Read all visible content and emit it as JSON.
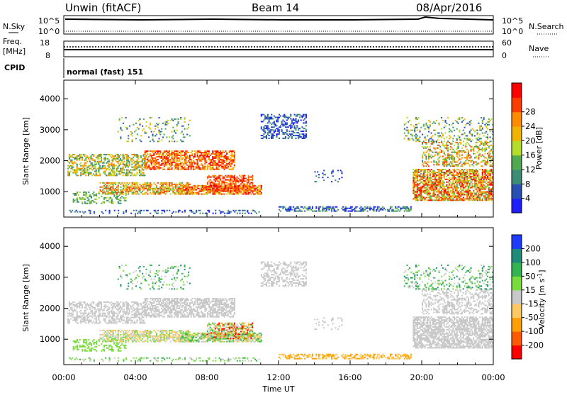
{
  "header": {
    "station": "Unwin (fitACF)",
    "beam": "Beam 14",
    "date": "08/Apr/2016"
  },
  "side_labels": {
    "nsky": "N.Sky",
    "nsearch": "N.Search",
    "freq_line1": "Freq.",
    "freq_line2": "[MHz]",
    "nave": "Nave",
    "cpid": "CPID"
  },
  "noise_panel": {
    "left_ticks": [
      "10^5",
      "10^0"
    ],
    "right_ticks": [
      "10^5",
      "10^0"
    ]
  },
  "freq_panel": {
    "left_ticks": [
      "18",
      "8"
    ],
    "right_ticks": [
      "60",
      "0"
    ]
  },
  "cpid_panel": {
    "text": "normal (fast) 151"
  },
  "colors": {
    "power_scale": [
      "#1e1eff",
      "#2850b4",
      "#3c8c78",
      "#50aa50",
      "#b4dc28",
      "#f0b400",
      "#ff8c00",
      "#ff3c00",
      "#ff0000"
    ],
    "velocity_scale": [
      "#ff0000",
      "#ff5a00",
      "#ffa000",
      "#ffc860",
      "#c8c8c8",
      "#78dc3c",
      "#32b450",
      "#1e8c78",
      "#1e3cff"
    ]
  },
  "chart_data": [
    {
      "type": "heatmap",
      "ylabel": "Slant Range [km]",
      "y_ticks": [
        "1000",
        "2000",
        "3000",
        "4000"
      ],
      "ylim": [
        180,
        4600
      ],
      "colorbar_label": "Power [dB]",
      "colorbar_ticks": [
        "4",
        "8",
        "12",
        "16",
        "20",
        "24",
        "28"
      ],
      "colorbar_range": [
        0,
        32
      ]
    },
    {
      "type": "heatmap",
      "ylabel": "Slant Range [km]",
      "y_ticks": [
        "1000",
        "2000",
        "3000",
        "4000"
      ],
      "ylim": [
        180,
        4600
      ],
      "xlabel": "Time UT",
      "x_ticks": [
        "00:00",
        "04:00",
        "08:00",
        "12:00",
        "16:00",
        "20:00",
        "00:00"
      ],
      "xlim_hours": [
        0,
        24
      ],
      "colorbar_label": "Velocity [m s^-1]",
      "colorbar_ticks": [
        "-200",
        "-100",
        "-50",
        "-15",
        "15",
        "50",
        "100",
        "200"
      ]
    }
  ]
}
